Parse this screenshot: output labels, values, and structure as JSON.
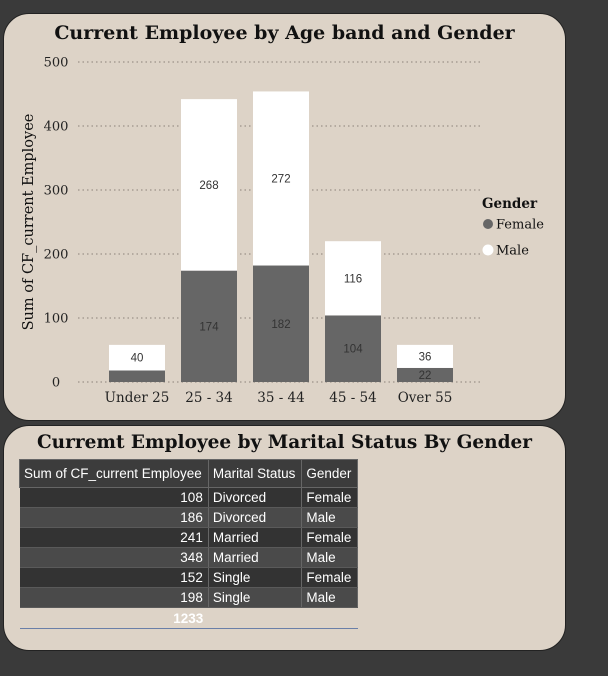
{
  "chart_card": {
    "title": "Current Employee by Age band and Gender"
  },
  "chart_data": {
    "type": "bar",
    "stacked": true,
    "title": "Current Employee by Age band and Gender",
    "xlabel": "",
    "ylabel": "Sum of CF_current Employee",
    "categories": [
      "Under 25",
      "25 - 34",
      "35 - 44",
      "45 - 54",
      "Over 55"
    ],
    "series": [
      {
        "name": "Female",
        "values": [
          18,
          174,
          182,
          104,
          22
        ],
        "color": "#666666",
        "label_values": [
          "",
          "174",
          "182",
          "104",
          "22"
        ]
      },
      {
        "name": "Male",
        "values": [
          40,
          268,
          272,
          116,
          36
        ],
        "color": "#ffffff",
        "label_values": [
          "40",
          "268",
          "272",
          "116",
          "36"
        ]
      }
    ],
    "ylim": [
      0,
      500
    ],
    "yticks": [
      0,
      100,
      200,
      300,
      400,
      500
    ],
    "grid": true,
    "legend": {
      "title": "Gender",
      "placement": "right",
      "entries": [
        "Female",
        "Male"
      ]
    }
  },
  "table_card": {
    "title": "Curremt Employee by Marital Status By Gender",
    "columns": [
      "Sum of CF_current Employee",
      "Marital Status",
      "Gender"
    ],
    "rows": [
      {
        "value": "108",
        "status": "Divorced",
        "gender": "Female"
      },
      {
        "value": "186",
        "status": "Divorced",
        "gender": "Male"
      },
      {
        "value": "241",
        "status": "Married",
        "gender": "Female"
      },
      {
        "value": "348",
        "status": "Married",
        "gender": "Male"
      },
      {
        "value": "152",
        "status": "Single",
        "gender": "Female"
      },
      {
        "value": "198",
        "status": "Single",
        "gender": "Male"
      }
    ],
    "total": "1233"
  }
}
